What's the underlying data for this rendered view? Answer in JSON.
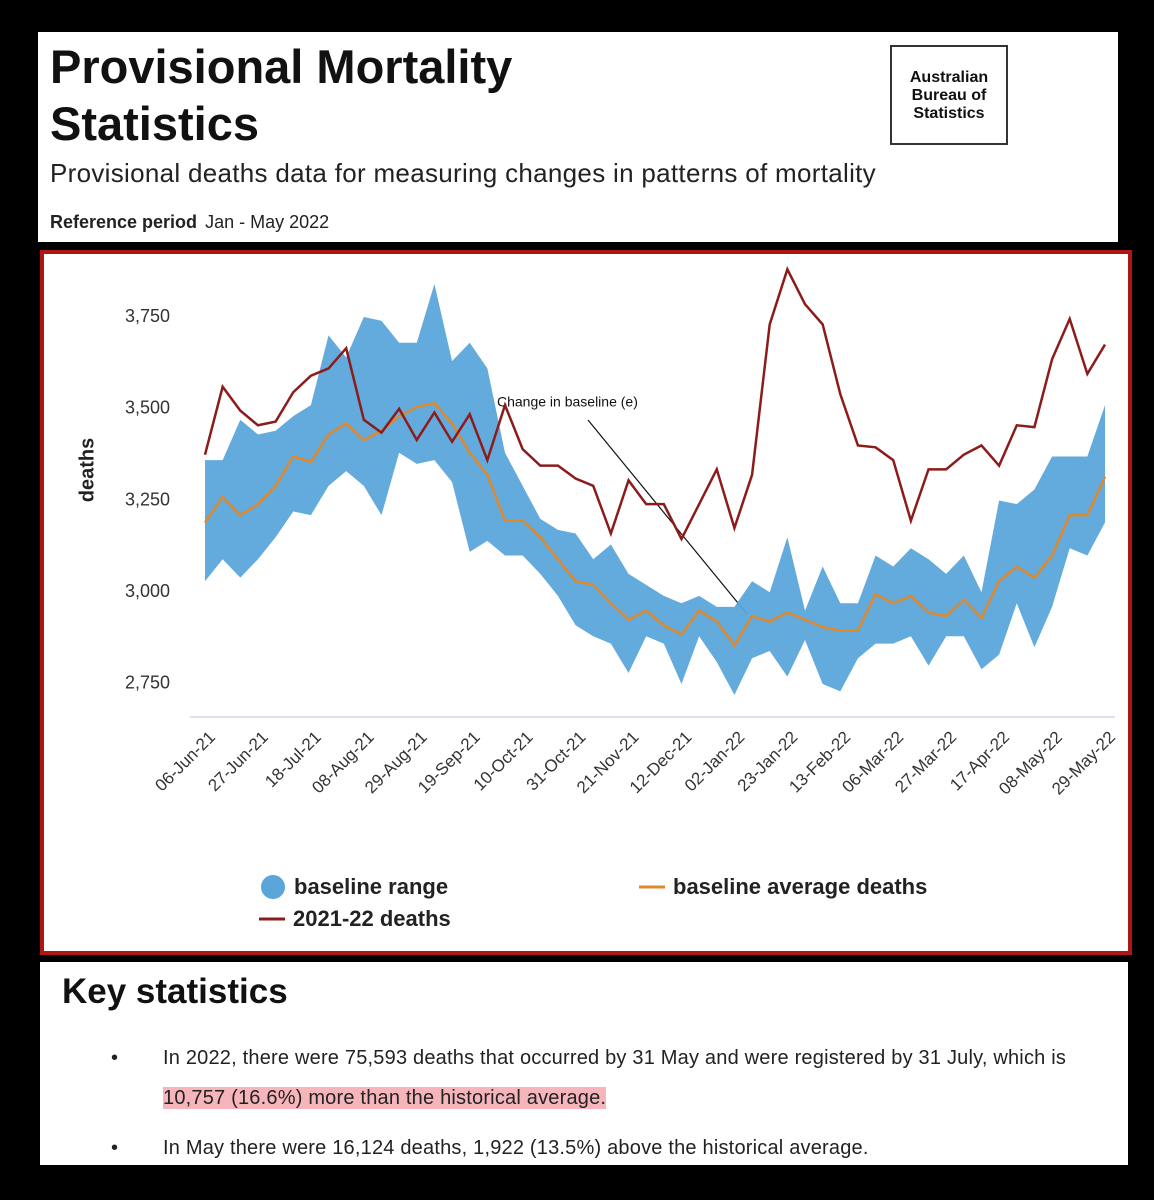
{
  "header": {
    "title": "Provisional Mortality Statistics",
    "subtitle": "Provisional deaths data for measuring changes in patterns of mortality",
    "reference_label": "Reference period",
    "reference_value": "Jan - May 2022",
    "logo_lines": [
      "Australian",
      "Bureau of",
      "Statistics"
    ]
  },
  "chart_data": {
    "type": "line",
    "y_label": "deaths",
    "annotation": "Change in baseline (e)",
    "categories": [
      "06-Jun-21",
      null,
      null,
      "27-Jun-21",
      null,
      null,
      "18-Jul-21",
      null,
      null,
      "08-Aug-21",
      null,
      null,
      "29-Aug-21",
      null,
      null,
      "19-Sep-21",
      null,
      null,
      "10-Oct-21",
      null,
      null,
      "31-Oct-21",
      null,
      null,
      "21-Nov-21",
      null,
      null,
      "12-Dec-21",
      null,
      null,
      "02-Jan-22",
      null,
      null,
      "23-Jan-22",
      null,
      null,
      "13-Feb-22",
      null,
      null,
      "06-Mar-22",
      null,
      null,
      "27-Mar-22",
      null,
      null,
      "17-Apr-22",
      null,
      null,
      "08-May-22",
      null,
      null,
      "29-May-22"
    ],
    "ylim": [
      2660,
      3900
    ],
    "yticks": [
      {
        "value": 2750,
        "label": "2,750"
      },
      {
        "value": 3000,
        "label": "3,000"
      },
      {
        "value": 3250,
        "label": "3,250"
      },
      {
        "value": 3500,
        "label": "3,500"
      },
      {
        "value": 3750,
        "label": "3,750"
      }
    ],
    "grid": false,
    "series": [
      {
        "name": "baseline range",
        "color": "#5ba5db",
        "upper": [
          3360,
          3360,
          3470,
          3430,
          3440,
          3480,
          3510,
          3700,
          3640,
          3750,
          3740,
          3680,
          3680,
          3840,
          3630,
          3680,
          3610,
          3380,
          3290,
          3200,
          3170,
          3160,
          3090,
          3130,
          3050,
          3020,
          2990,
          2970,
          2990,
          2960,
          2960,
          3030,
          3000,
          3150,
          2950,
          3070,
          2970,
          2970,
          3100,
          3070,
          3120,
          3090,
          3050,
          3100,
          3000,
          3250,
          3240,
          3280,
          3370,
          3370,
          3370,
          3510
        ],
        "lower": [
          3030,
          3090,
          3040,
          3090,
          3150,
          3220,
          3210,
          3290,
          3330,
          3290,
          3210,
          3380,
          3350,
          3360,
          3300,
          3110,
          3140,
          3100,
          3100,
          3050,
          2990,
          2910,
          2880,
          2860,
          2780,
          2880,
          2860,
          2750,
          2880,
          2810,
          2720,
          2820,
          2840,
          2770,
          2870,
          2750,
          2730,
          2820,
          2860,
          2860,
          2880,
          2800,
          2880,
          2880,
          2790,
          2830,
          2970,
          2850,
          2960,
          3120,
          3100,
          3190
        ]
      },
      {
        "name": "baseline average deaths",
        "color": "#e0892c",
        "values": [
          3190,
          3260,
          3210,
          3240,
          3290,
          3370,
          3355,
          3430,
          3460,
          3415,
          3440,
          3480,
          3505,
          3515,
          3460,
          3380,
          3320,
          3195,
          3195,
          3150,
          3090,
          3030,
          3020,
          2970,
          2925,
          2950,
          2910,
          2885,
          2950,
          2920,
          2855,
          2935,
          2920,
          2945,
          2925,
          2905,
          2895,
          2895,
          2995,
          2970,
          2990,
          2945,
          2935,
          2980,
          2930,
          3030,
          3070,
          3040,
          3100,
          3210,
          3210,
          3315
        ]
      },
      {
        "name": "2021-22 deaths",
        "color": "#8c1c1c",
        "values": [
          3375,
          3560,
          3495,
          3455,
          3465,
          3545,
          3590,
          3610,
          3665,
          3470,
          3435,
          3500,
          3415,
          3490,
          3410,
          3485,
          3360,
          3510,
          3390,
          3345,
          3345,
          3310,
          3290,
          3160,
          3305,
          3240,
          3240,
          3145,
          3240,
          3335,
          3175,
          3320,
          3730,
          3880,
          3785,
          3730,
          3540,
          3400,
          3395,
          3360,
          3195,
          3335,
          3335,
          3375,
          3400,
          3345,
          3455,
          3450,
          3635,
          3745,
          3595,
          3675
        ]
      }
    ]
  },
  "key_statistics": {
    "title": "Key statistics",
    "bullets": [
      {
        "text": "In 2022, there were 75,593 deaths that occurred by 31 May and were registered by 31 July, which is ",
        "highlight": "10,757 (16.6%) more than the historical average."
      },
      {
        "text": "In May there were 16,124 deaths, 1,922 (13.5%) above the historical average."
      }
    ]
  }
}
